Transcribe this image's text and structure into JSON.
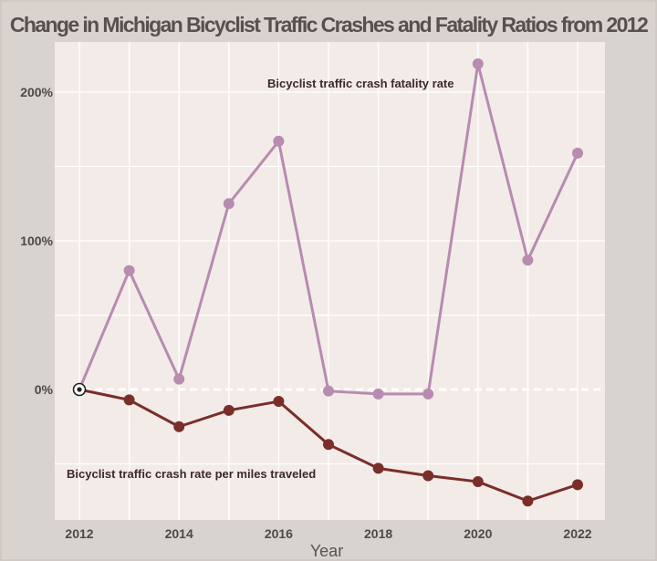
{
  "chart_data": {
    "type": "line",
    "title": "Change  in Michigan Bicyclist Traffic Crashes and Fatality Ratios from 2012",
    "xlabel": "Year",
    "ylabel": "",
    "x": [
      2012,
      2013,
      2014,
      2015,
      2016,
      2017,
      2018,
      2019,
      2020,
      2021,
      2022
    ],
    "x_ticks": [
      "2012",
      "2014",
      "2016",
      "2018",
      "2020",
      "2022"
    ],
    "y_ticks": [
      {
        "value": 200,
        "label": "200%"
      },
      {
        "value": 100,
        "label": "100%"
      },
      {
        "value": 0,
        "label": "0%"
      }
    ],
    "ylim": [
      -95,
      230
    ],
    "xlim": [
      2011.5,
      2022.5
    ],
    "grid": true,
    "series": [
      {
        "name": "Bicyclist traffic crash fatality rate",
        "color": "#b88bb0",
        "values": [
          0,
          80,
          7,
          125,
          167,
          -1,
          -3,
          -3,
          219,
          87,
          159
        ]
      },
      {
        "name": "Bicyclist traffic crash rate per miles traveled",
        "color": "#7a2e2a",
        "values": [
          0,
          -7,
          -25,
          -14,
          -8,
          -37,
          -53,
          -58,
          -62,
          -75,
          -64
        ]
      }
    ],
    "annotations": [
      {
        "text": "Bicyclist traffic crash fatality rate",
        "series": 0
      },
      {
        "text": "Bicyclist traffic crash rate per miles traveled",
        "series": 1
      }
    ],
    "baseline": 0
  }
}
